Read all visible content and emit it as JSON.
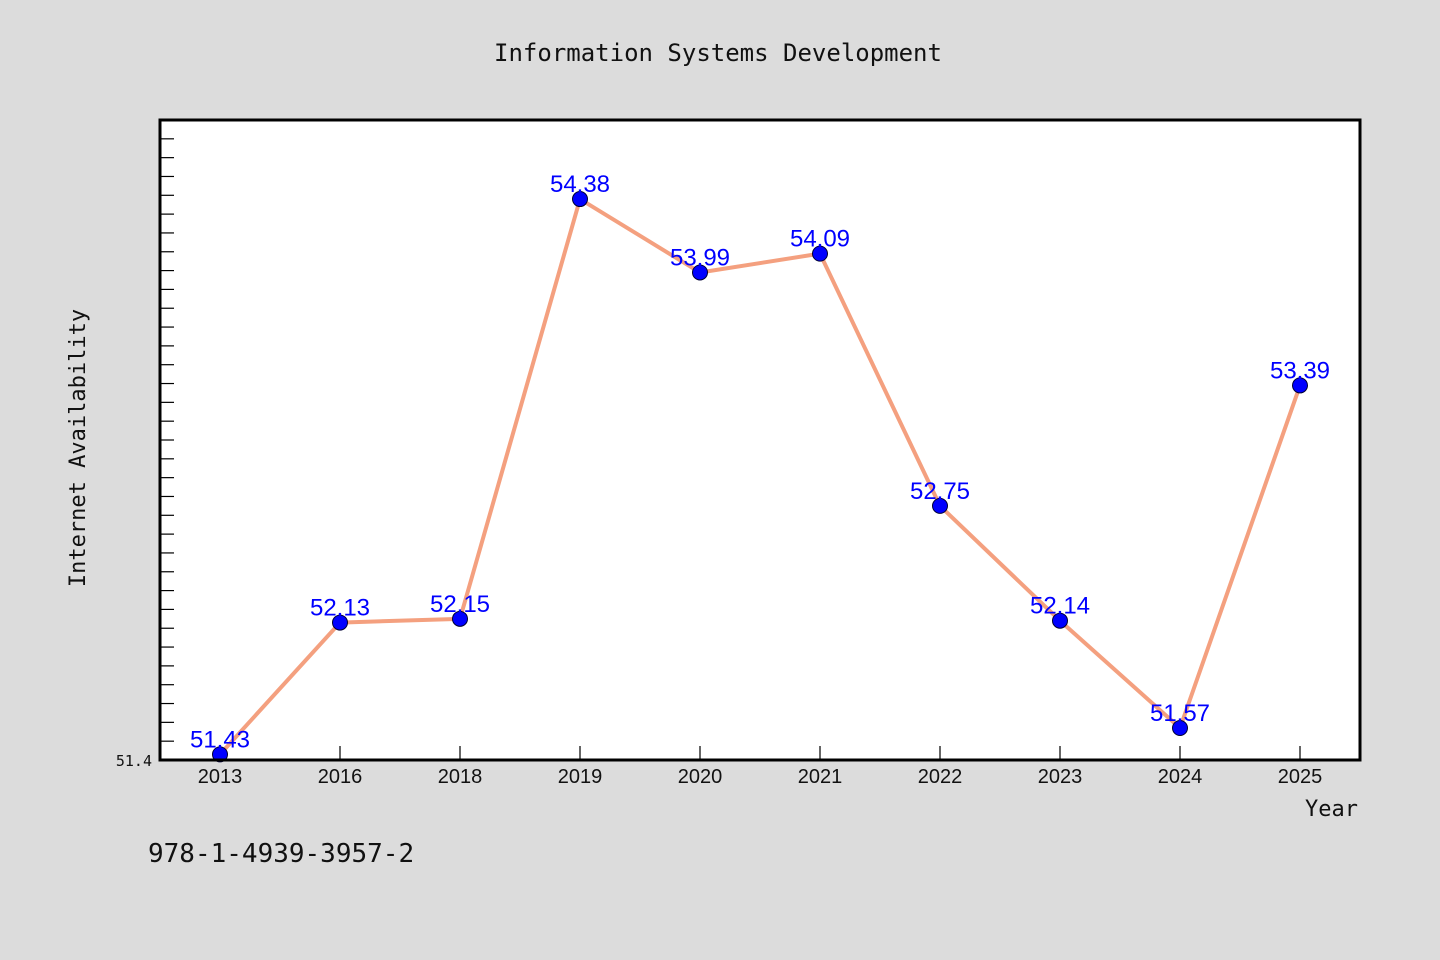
{
  "chart_data": {
    "type": "line",
    "title": "Information Systems Development",
    "xlabel": "Year",
    "ylabel": "Internet Availability",
    "categories": [
      "2013",
      "2016",
      "2018",
      "2019",
      "2020",
      "2021",
      "2022",
      "2023",
      "2024",
      "2025"
    ],
    "series": [
      {
        "values": [
          51.43,
          52.13,
          52.15,
          54.38,
          53.99,
          54.09,
          52.75,
          52.14,
          51.57,
          53.39
        ],
        "line_color": "#f4a07f",
        "marker_color": "#0000ff"
      }
    ],
    "ylim": [
      51.4,
      54.8
    ],
    "y_min_label": "51.4",
    "data_labels": [
      "51.43",
      "52.13",
      "52.15",
      "54.38",
      "53.99",
      "54.09",
      "52.75",
      "52.14",
      "51.57",
      "53.39"
    ],
    "grid": false,
    "legend": "none"
  },
  "footer": {
    "text": "978-1-4939-3957-2"
  },
  "colors": {
    "background": "#dcdcdc",
    "plot_background": "#ffffff",
    "line": "#f4a07f",
    "marker": "#0000ff",
    "data_label": "#0000ff"
  }
}
